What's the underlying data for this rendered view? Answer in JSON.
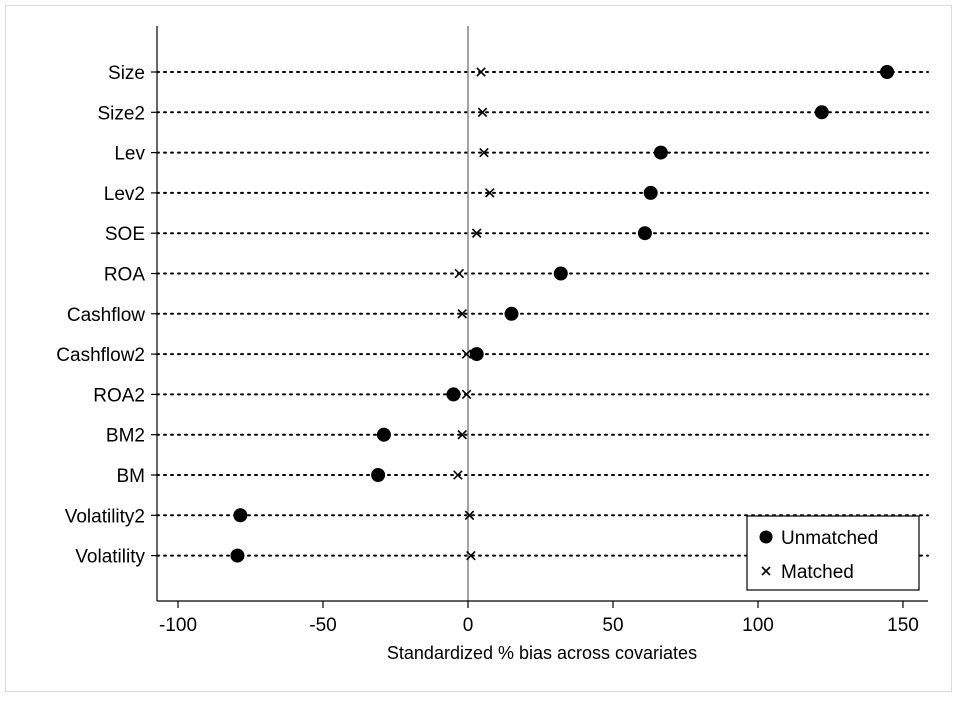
{
  "chart_data": {
    "type": "scatter",
    "title": "",
    "xlabel": "Standardized % bias across covariates",
    "ylabel": "",
    "xlim": [
      -108,
      158
    ],
    "xticks": [
      -100,
      -50,
      0,
      50,
      100,
      150
    ],
    "xtick_labels": [
      "-100",
      "-50",
      "0",
      "50",
      "100",
      "150"
    ],
    "reference_line_x": 0,
    "grid": "dotted horizontal lines per covariate",
    "legend_position": "bottom-right",
    "categories": [
      "Size",
      "Size2",
      "Lev",
      "Lev2",
      "SOE",
      "ROA",
      "Cashflow",
      "Cashflow2",
      "ROA2",
      "BM2",
      "BM",
      "Volatility2",
      "Volatility"
    ],
    "series": [
      {
        "name": "Unmatched",
        "marker": "filled-circle",
        "color": "#000000",
        "values": [
          144.5,
          122,
          66.5,
          63,
          61,
          32,
          15,
          3,
          -5,
          -29,
          -31,
          -78.5,
          -79.5
        ]
      },
      {
        "name": "Matched",
        "marker": "x",
        "color": "#000000",
        "values": [
          4.5,
          5,
          5.5,
          7.5,
          3,
          -3,
          -2,
          -0.5,
          -0.5,
          -2,
          -3.5,
          0.5,
          1
        ]
      }
    ]
  }
}
